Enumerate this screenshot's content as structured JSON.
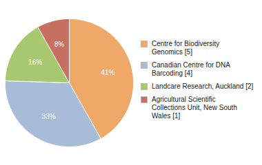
{
  "chart_data": {
    "type": "pie",
    "categories": [
      "Centre for Biodiversity\nGenomics [5]",
      "Canadian Centre for DNA\nBarcoding [4]",
      "Landcare Research, Auckland [2]",
      "Agricultural Scientific\nCollections Unit, New South\nWales [1]"
    ],
    "values": [
      41,
      33,
      16,
      8
    ],
    "value_labels": [
      "41%",
      "33%",
      "16%",
      "8%"
    ],
    "data_labels": true,
    "colors": [
      "#f0a868",
      "#a8bcd8",
      "#a8c870",
      "#c87060"
    ],
    "legend": "right"
  }
}
